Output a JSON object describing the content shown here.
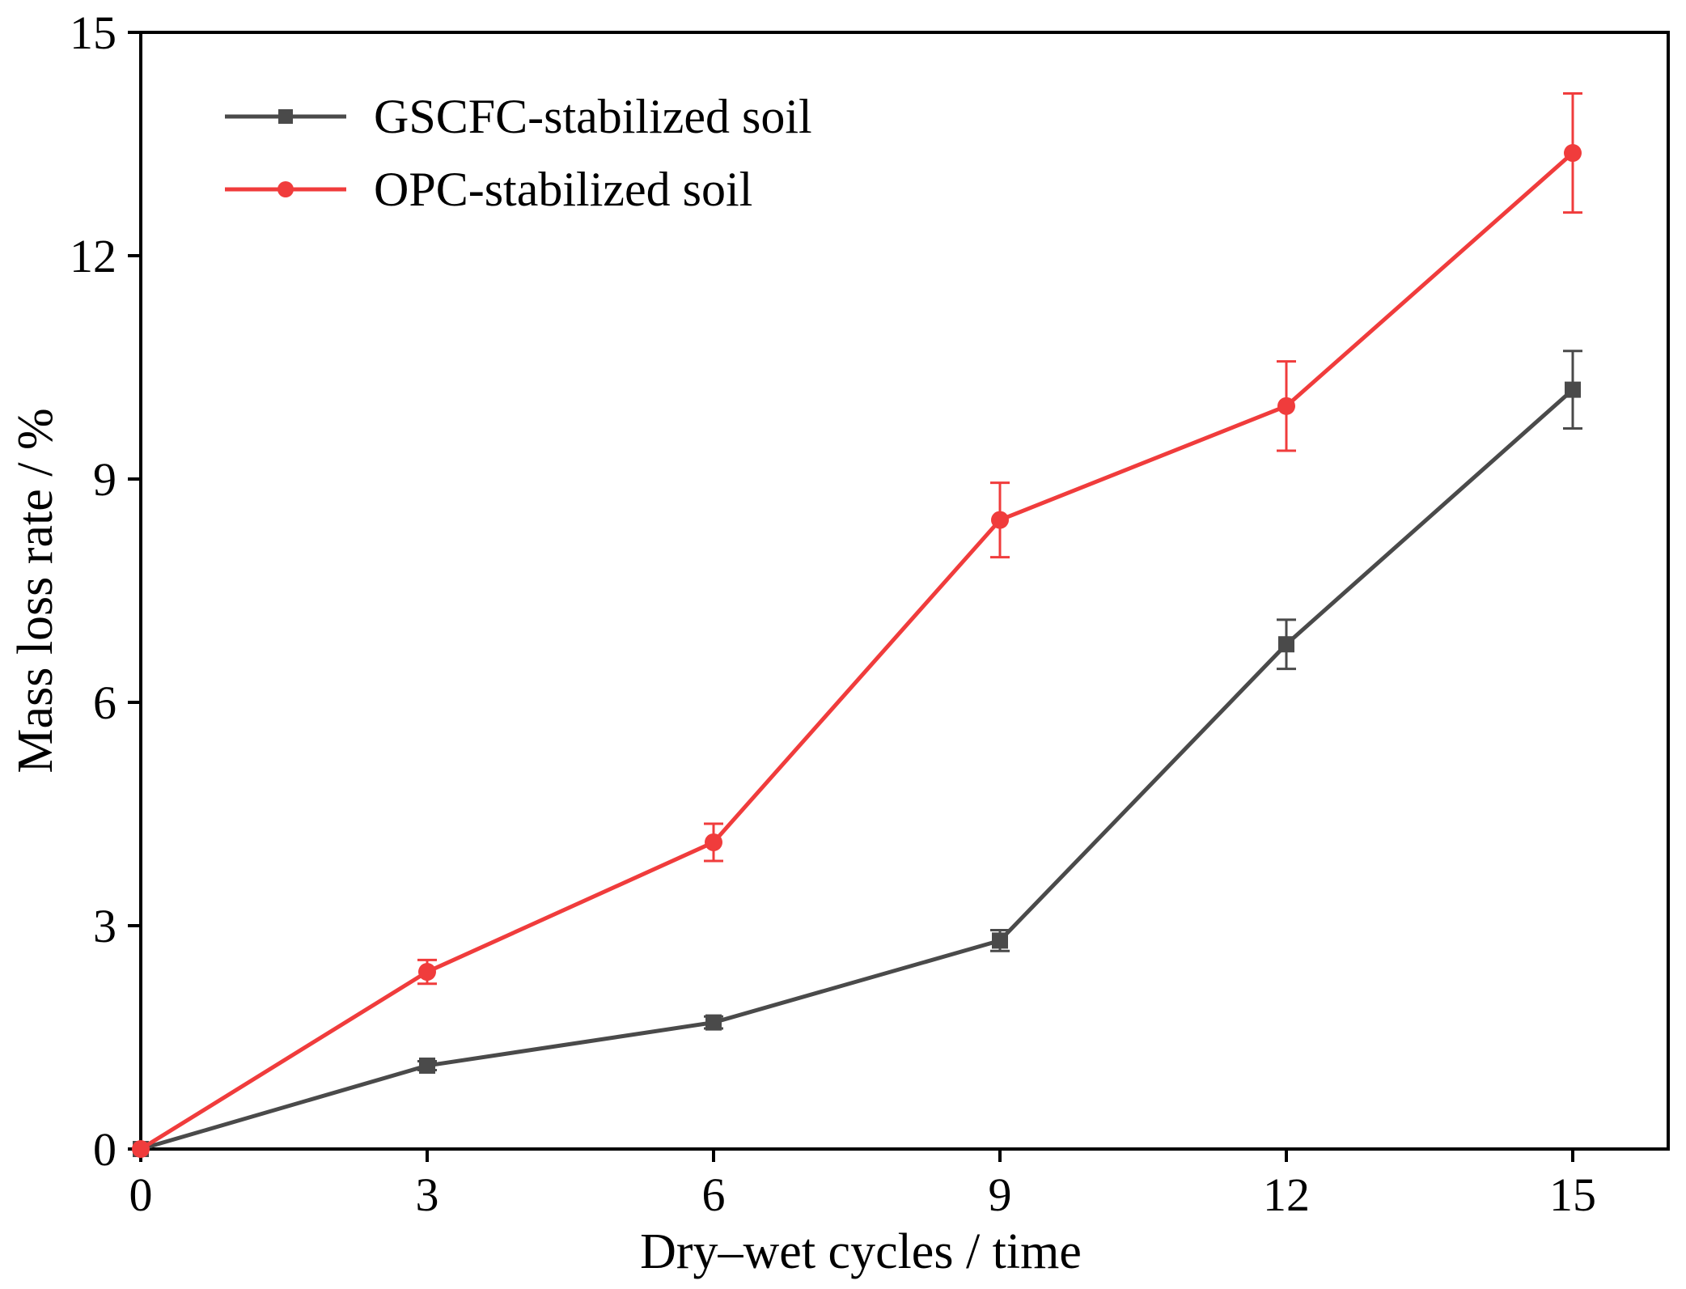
{
  "chart_data": {
    "type": "line",
    "title": "",
    "xlabel": "Dry–wet cycles / time",
    "ylabel": "Mass loss rate / %",
    "xlim": [
      0,
      16
    ],
    "ylim": [
      0,
      15
    ],
    "xticks": [
      0,
      3,
      6,
      9,
      12,
      15
    ],
    "yticks": [
      0,
      3,
      6,
      9,
      12,
      15
    ],
    "grid": false,
    "legend_position": "top-left",
    "x": [
      0,
      3,
      6,
      9,
      12,
      15
    ],
    "series": [
      {
        "name": "GSCFC-stabilized soil",
        "color": "#4a4a4a",
        "marker": "square",
        "values": [
          0,
          1.12,
          1.7,
          2.8,
          6.78,
          10.2
        ],
        "errors": [
          0,
          0.06,
          0.08,
          0.14,
          0.33,
          0.52
        ]
      },
      {
        "name": "OPC-stabilized soil",
        "color": "#f03c3c",
        "marker": "circle",
        "values": [
          0,
          2.38,
          4.12,
          8.45,
          9.98,
          13.38
        ],
        "errors": [
          0,
          0.16,
          0.25,
          0.5,
          0.6,
          0.8
        ]
      }
    ]
  }
}
